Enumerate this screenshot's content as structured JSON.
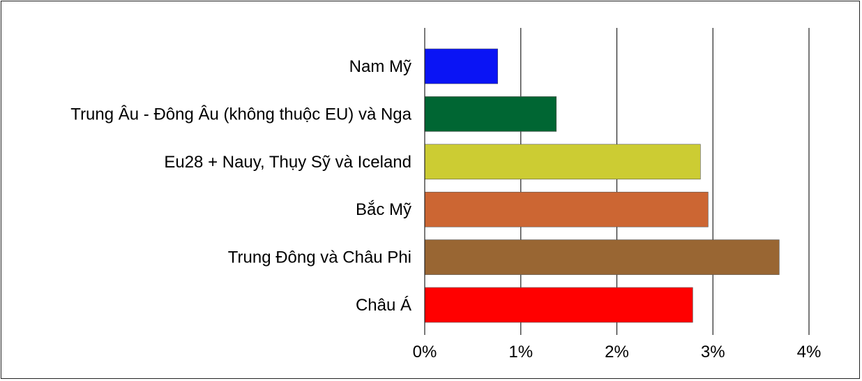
{
  "chart_data": {
    "type": "bar",
    "orientation": "horizontal",
    "title": "",
    "xlabel": "",
    "ylabel": "",
    "categories": [
      "Nam Mỹ",
      "Trung Âu - Đông Âu (không thuộc EU) và Nga",
      "Eu28 + Nauy, Thụy Sỹ và Iceland",
      "Bắc Mỹ",
      "Trung Đông và Châu Phi",
      "Châu Á"
    ],
    "values": [
      0.76,
      1.37,
      2.87,
      2.95,
      3.69,
      2.79
    ],
    "colors": [
      "#0a14f5",
      "#006633",
      "#cccc33",
      "#cc6633",
      "#996633",
      "#ff0000"
    ],
    "xlim": [
      0,
      4
    ],
    "xticks": [
      0,
      1,
      2,
      3,
      4
    ],
    "xtick_labels": [
      "0%",
      "1%",
      "2%",
      "3%",
      "4%"
    ],
    "grid": "vertical",
    "legend": "none"
  }
}
